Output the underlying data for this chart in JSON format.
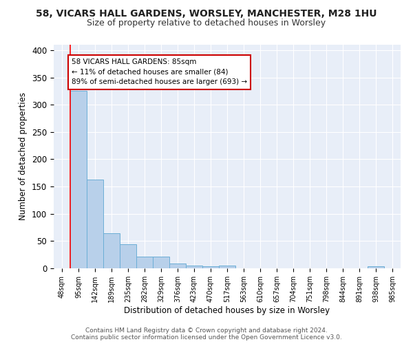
{
  "title_line1": "58, VICARS HALL GARDENS, WORSLEY, MANCHESTER, M28 1HU",
  "title_line2": "Size of property relative to detached houses in Worsley",
  "xlabel": "Distribution of detached houses by size in Worsley",
  "ylabel": "Number of detached properties",
  "categories": [
    "48sqm",
    "95sqm",
    "142sqm",
    "189sqm",
    "235sqm",
    "282sqm",
    "329sqm",
    "376sqm",
    "423sqm",
    "470sqm",
    "517sqm",
    "563sqm",
    "610sqm",
    "657sqm",
    "704sqm",
    "751sqm",
    "798sqm",
    "844sqm",
    "891sqm",
    "938sqm",
    "985sqm"
  ],
  "values": [
    0,
    325,
    163,
    64,
    44,
    21,
    21,
    9,
    5,
    4,
    5,
    0,
    0,
    0,
    0,
    0,
    0,
    0,
    0,
    4,
    0
  ],
  "bar_color": "#b8d0ea",
  "bar_edge_color": "#6baed6",
  "background_color": "#e8eef8",
  "grid_color": "#ffffff",
  "red_line_x": 0.5,
  "annotation_text": "58 VICARS HALL GARDENS: 85sqm\n← 11% of detached houses are smaller (84)\n89% of semi-detached houses are larger (693) →",
  "annotation_box_color": "#ffffff",
  "annotation_box_edge_color": "#cc0000",
  "ylim": [
    0,
    410
  ],
  "yticks": [
    0,
    50,
    100,
    150,
    200,
    250,
    300,
    350,
    400
  ],
  "footer_line1": "Contains HM Land Registry data © Crown copyright and database right 2024.",
  "footer_line2": "Contains public sector information licensed under the Open Government Licence v3.0."
}
